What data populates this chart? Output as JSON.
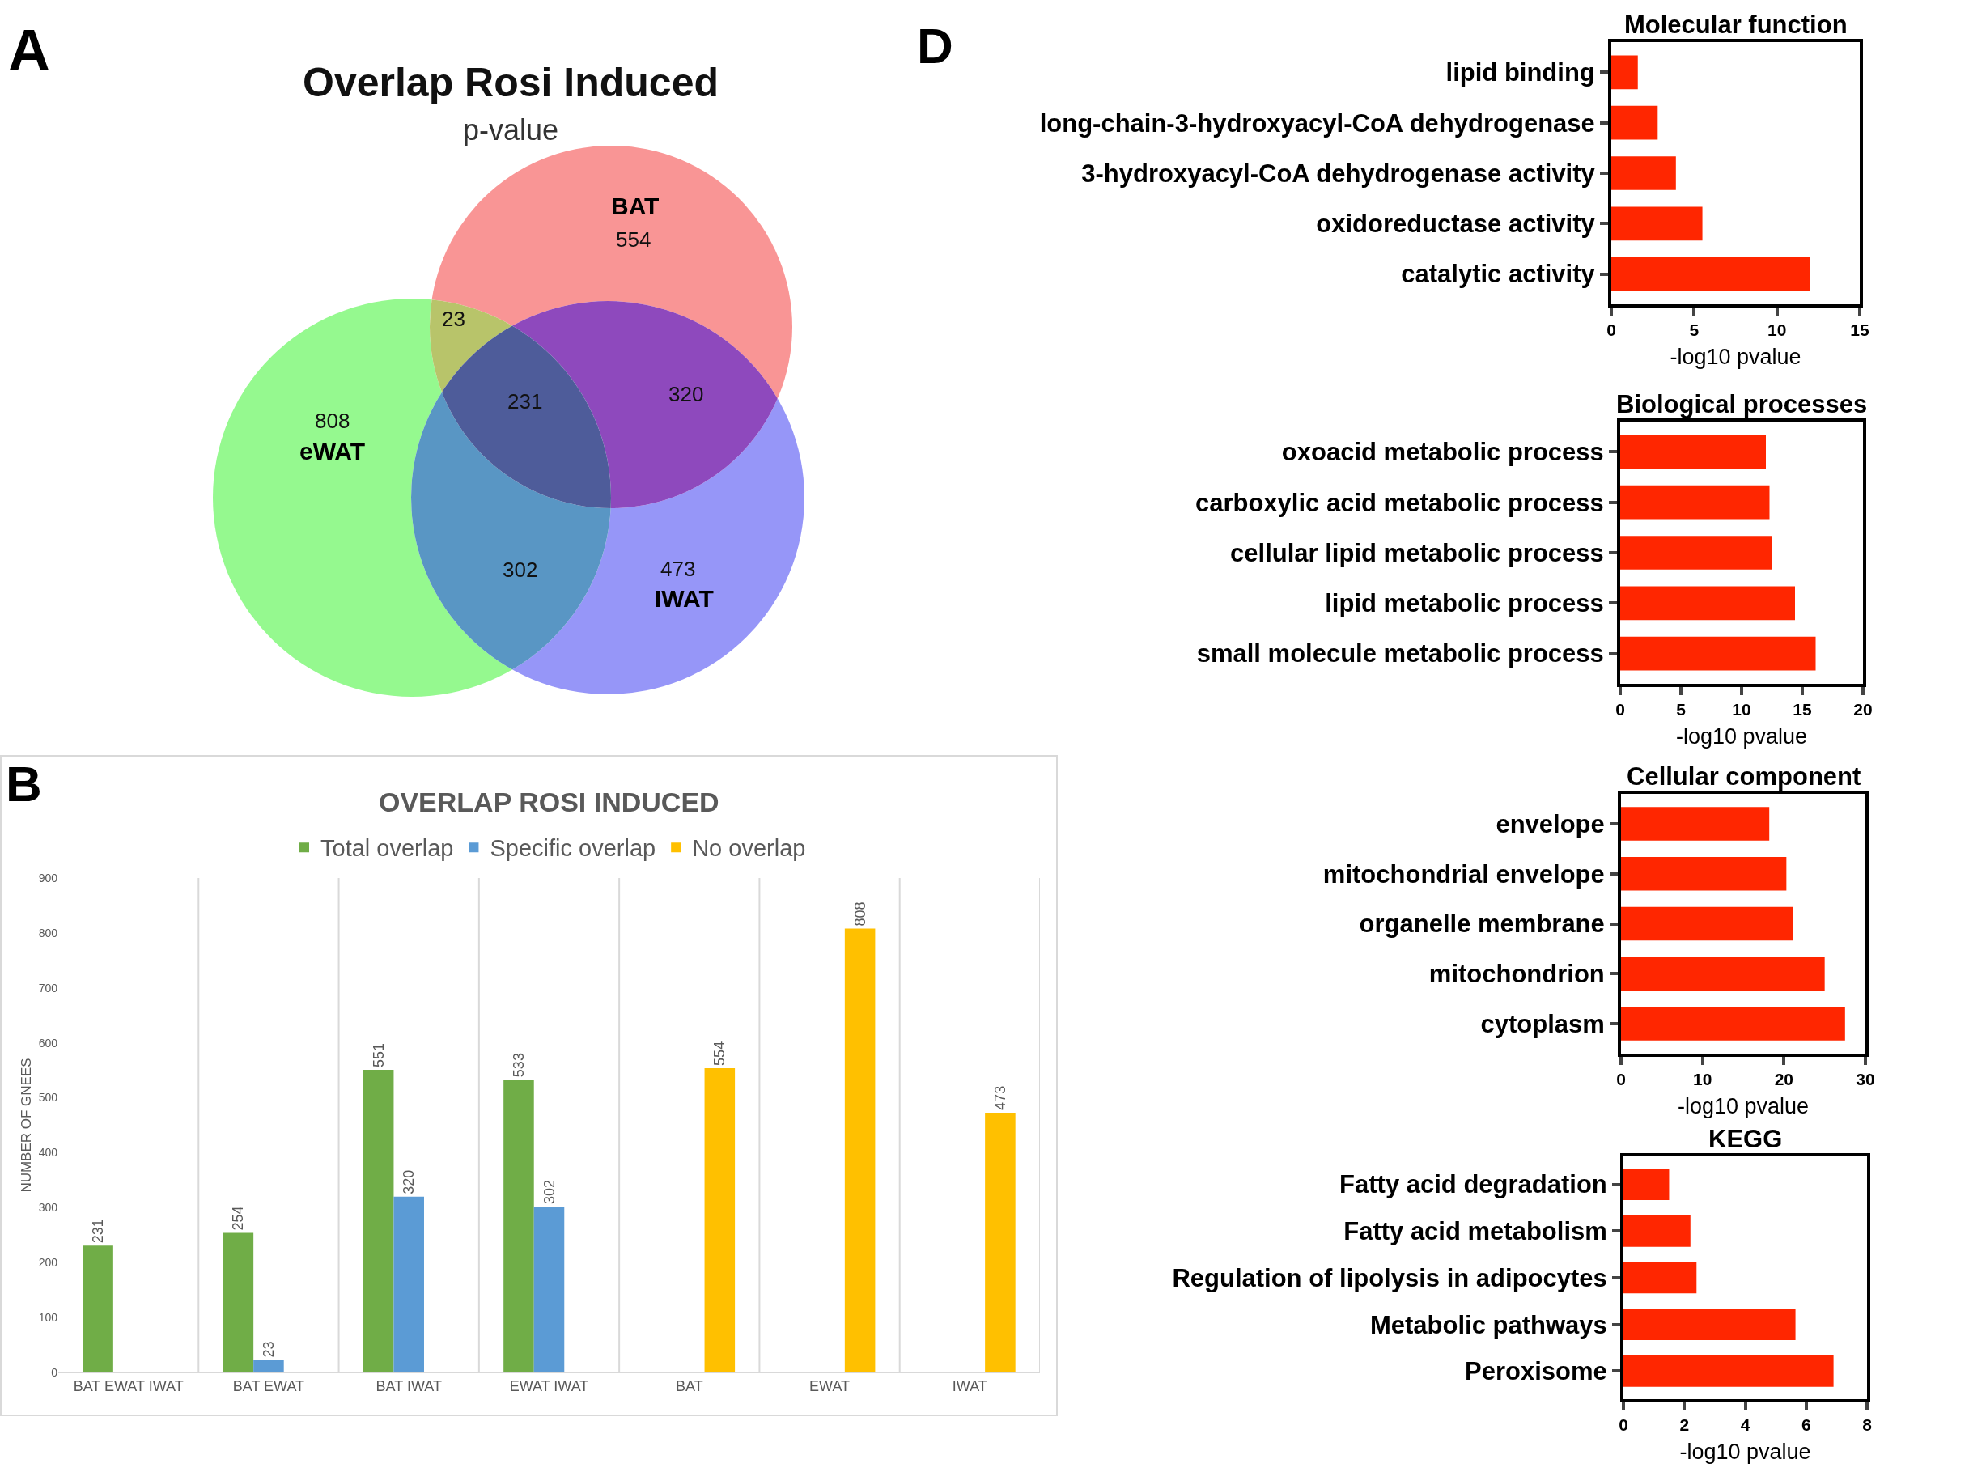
{
  "chart_data": [
    {
      "type": "other",
      "title": "Overlap Rosi Induced",
      "subtitle": "p-value",
      "annotations": [
        "A",
        "554",
        "808",
        "473",
        "23",
        "320",
        "302",
        "231"
      ],
      "categories": [
        "BAT",
        "eWAT",
        "IWAT",
        null,
        null,
        null,
        null
      ],
      "colors": [
        "#f99595",
        "#95f98f",
        "#9696f8",
        "#b8c46a",
        "#8e49bd",
        "#5996c4",
        "#4e5c9a"
      ]
    },
    {
      "type": "bar",
      "title": "OVERLAP ROSI INDUCED",
      "ylabel": "NUMBER OF GNEES",
      "annotations": [
        "B"
      ],
      "categories": [
        "BAT EWAT IWAT",
        "BAT EWAT",
        "BAT IWAT",
        "EWAT IWAT",
        "BAT",
        "EWAT",
        "IWAT"
      ],
      "series": [
        {
          "name": "Total overlap",
          "color": "#70ad47",
          "values": [
            231,
            254,
            551,
            533,
            null,
            null,
            null
          ]
        },
        {
          "name": "Specific overlap",
          "color": "#5b9bd5",
          "values": [
            null,
            23,
            320,
            302,
            null,
            null,
            null
          ]
        },
        {
          "name": "No overlap",
          "color": "#ffc000",
          "values": [
            null,
            null,
            null,
            null,
            554,
            808,
            473
          ]
        }
      ],
      "ylim": [
        0,
        900
      ],
      "yticks": [
        0,
        100,
        200,
        300,
        400,
        500,
        600,
        700,
        800,
        900
      ],
      "grid": "x",
      "legend": "top",
      "data_labels": true
    },
    {
      "type": "bar",
      "orientation": "horizontal",
      "title": "Molecular function",
      "xlabel": "-log10 pvalue",
      "annotations": [
        "D"
      ],
      "categories": [
        "lipid binding",
        "long-chain-3-hydroxyacyl-CoA dehydrogenase",
        "3-hydroxyacyl-CoA dehydrogenase activity",
        "oxidoreductase activity",
        "catalytic activity"
      ],
      "values": [
        1.6,
        2.8,
        3.9,
        5.5,
        12.0
      ],
      "color": "#ff2600",
      "xlim": [
        0,
        15
      ],
      "xticks": [
        0,
        5,
        10,
        15
      ]
    },
    {
      "type": "bar",
      "orientation": "horizontal",
      "title": "Biological processes",
      "xlabel": "-log10 pvalue",
      "categories": [
        "oxoacid metabolic process",
        "carboxylic acid metabolic process",
        "cellular lipid metabolic process",
        "lipid metabolic process",
        "small molecule metabolic process"
      ],
      "values": [
        12.0,
        12.3,
        12.5,
        14.4,
        16.1
      ],
      "color": "#ff2600",
      "xlim": [
        0,
        20
      ],
      "xticks": [
        0,
        5,
        10,
        15,
        20
      ]
    },
    {
      "type": "bar",
      "orientation": "horizontal",
      "title": "Cellular component",
      "xlabel": "-log10 pvalue",
      "categories": [
        "envelope",
        "mitochondrial envelope",
        "organelle membrane",
        "mitochondrion",
        "cytoplasm"
      ],
      "values": [
        18.2,
        20.3,
        21.1,
        25.0,
        27.5
      ],
      "color": "#ff2600",
      "xlim": [
        0,
        30
      ],
      "xticks": [
        0,
        10,
        20,
        30
      ]
    },
    {
      "type": "bar",
      "orientation": "horizontal",
      "title": "KEGG",
      "xlabel": "-log10 pvalue",
      "categories": [
        "Fatty acid degradation",
        "Fatty acid metabolism",
        "Regulation of lipolysis in adipocytes",
        "Metabolic pathways",
        "Peroxisome"
      ],
      "values": [
        1.5,
        2.2,
        2.4,
        5.65,
        6.9
      ],
      "color": "#ff2600",
      "xlim": [
        0,
        8
      ],
      "xticks": [
        0,
        2,
        4,
        6,
        8
      ]
    }
  ]
}
